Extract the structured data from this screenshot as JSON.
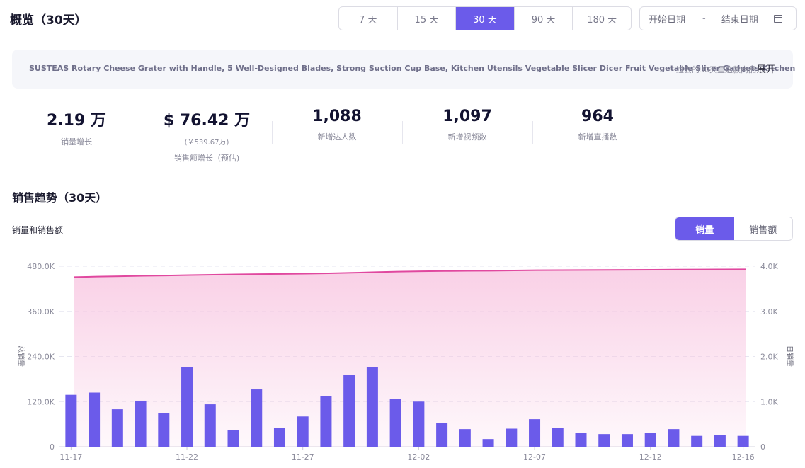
{
  "header": {
    "title": "概览（30天）"
  },
  "range_tabs": [
    {
      "label": "7 天",
      "active": false
    },
    {
      "label": "15 天",
      "active": false
    },
    {
      "label": "30 天",
      "active": true
    },
    {
      "label": "90 天",
      "active": false
    },
    {
      "label": "180 天",
      "active": false
    }
  ],
  "date_range": {
    "start_placeholder": "开始日期",
    "separator": "-",
    "end_placeholder": "结束日期",
    "icon": "calendar-icon"
  },
  "product": {
    "name": "SUSTEAS Rotary Cheese Grater with Handle, 5 Well-Designed Blades, Strong Suction Cup Base, Kitchen Utensils Vegetable Slicer Dicer Fruit Vegetable Slicer Gadgets Kitchen",
    "description": "过去的30天里这款商品",
    "expand_label": "展开"
  },
  "stats": [
    {
      "value": "2.19 万",
      "label": "销量增长"
    },
    {
      "value": "$ 76.42 万",
      "sub": "(￥539.67万)",
      "label": "销售额增长（预估)"
    },
    {
      "value": "1,088",
      "label": "新增达人数"
    },
    {
      "value": "1,097",
      "label": "新增视频数"
    },
    {
      "value": "964",
      "label": "新增直播数"
    }
  ],
  "trend": {
    "title": "销售趋势（30天）",
    "subtitle": "销量和销售额",
    "toggle": [
      {
        "label": "销量",
        "active": true
      },
      {
        "label": "销售额",
        "active": false
      }
    ]
  },
  "colors": {
    "accent": "#6b5bea",
    "line": "#e0489f",
    "area": "#f8c8e2",
    "bar": "#6b5bea"
  },
  "chart_data": {
    "type": "bar+area",
    "x": [
      "11-17",
      "11-18",
      "11-19",
      "11-20",
      "11-21",
      "11-22",
      "11-23",
      "11-24",
      "11-25",
      "11-26",
      "11-27",
      "11-28",
      "11-29",
      "11-30",
      "12-01",
      "12-02",
      "12-03",
      "12-04",
      "12-05",
      "12-06",
      "12-07",
      "12-08",
      "12-09",
      "12-10",
      "12-11",
      "12-12",
      "12-13",
      "12-14",
      "12-15",
      "12-16"
    ],
    "x_tick_labels": [
      "11-17",
      "11-22",
      "11-27",
      "12-02",
      "12-07",
      "12-12",
      "12-16"
    ],
    "series": [
      {
        "name": "总销量",
        "type": "area",
        "axis": "left",
        "values": [
          451000,
          452500,
          453500,
          454500,
          455200,
          456500,
          457500,
          458300,
          459000,
          459600,
          460300,
          461200,
          462500,
          464200,
          465600,
          466600,
          467300,
          467700,
          468100,
          468700,
          469400,
          469700,
          469900,
          470100,
          470400,
          470700,
          471000,
          471300,
          471500,
          471700
        ]
      },
      {
        "name": "日销量",
        "type": "bar",
        "axis": "right",
        "values": [
          1150,
          1200,
          830,
          1020,
          740,
          1760,
          940,
          370,
          1270,
          420,
          670,
          1120,
          1590,
          1760,
          1060,
          1000,
          520,
          390,
          170,
          400,
          610,
          410,
          310,
          280,
          280,
          300,
          390,
          240,
          260,
          240
        ]
      }
    ],
    "y_left": {
      "label": "总销量",
      "ticks": [
        "0",
        "120.0K",
        "240.0K",
        "360.0K",
        "480.0K"
      ],
      "range": [
        0,
        480000
      ]
    },
    "y_right": {
      "label": "日销量",
      "ticks": [
        "0",
        "1.0K",
        "2.0K",
        "3.0K",
        "4.0K"
      ],
      "range": [
        0,
        4000
      ]
    },
    "grid": true
  }
}
